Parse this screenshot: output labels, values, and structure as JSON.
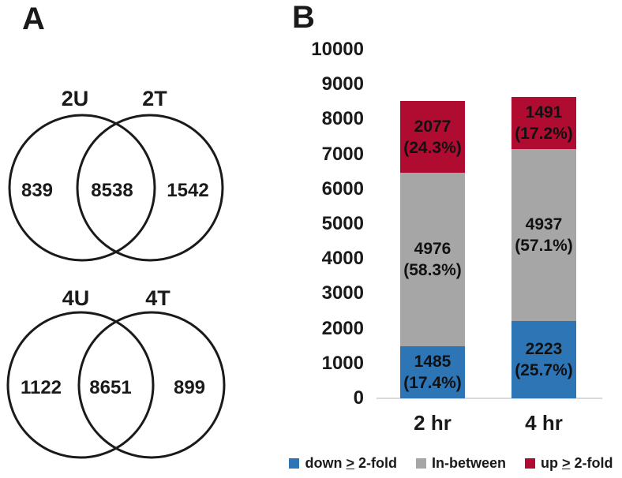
{
  "panelA": {
    "label": "A",
    "venns": [
      {
        "left_label": "2U",
        "right_label": "2T",
        "left_value": "839",
        "overlap_value": "8538",
        "right_value": "1542"
      },
      {
        "left_label": "4U",
        "right_label": "4T",
        "left_value": "1122",
        "overlap_value": "8651",
        "right_value": "899"
      }
    ]
  },
  "panelB": {
    "label": "B"
  },
  "chart_data": {
    "type": "bar",
    "stacked": true,
    "categories": [
      "2 hr",
      "4 hr"
    ],
    "series": [
      {
        "name": "down ≥ 2-fold",
        "color": "#2E75B6",
        "values": [
          1485,
          2223
        ],
        "percent_labels": [
          "(17.4%)",
          "(25.7%)"
        ]
      },
      {
        "name": "In-between",
        "color": "#A6A6A6",
        "values": [
          4976,
          4937
        ],
        "percent_labels": [
          "(58.3%)",
          "(57.1%)"
        ]
      },
      {
        "name": "up ≥ 2-fold",
        "color": "#B00B31",
        "values": [
          2077,
          1491
        ],
        "percent_labels": [
          "(24.3%)",
          "(17.2%)"
        ]
      }
    ],
    "totals": [
      8538,
      8651
    ],
    "ylim": [
      0,
      10000
    ],
    "yticks": [
      0,
      1000,
      2000,
      3000,
      4000,
      5000,
      6000,
      7000,
      8000,
      9000,
      10000
    ],
    "grid": false,
    "legend_position": "bottom",
    "legend": [
      {
        "prefix": "down ",
        "symbol": ">",
        "suffix": " 2-fold",
        "color": "#2E75B6"
      },
      {
        "prefix": "In-between",
        "symbol": "",
        "suffix": "",
        "color": "#A6A6A6"
      },
      {
        "prefix": "up ",
        "symbol": ">",
        "suffix": " 2-fold",
        "color": "#B00B31"
      }
    ],
    "axis_line_color": "#D9D9D9",
    "text_color": "#1a1a1a"
  }
}
